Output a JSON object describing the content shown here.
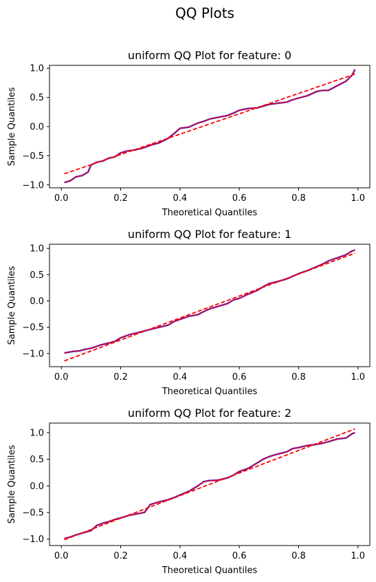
{
  "figure_title": "QQ Plots",
  "colors": {
    "sample_line": "#3b1fd6",
    "reference_line": "#ff0000"
  },
  "chart_data": [
    {
      "type": "line",
      "title": "uniform QQ Plot for feature: 0",
      "xlabel": "Theoretical Quantiles",
      "ylabel": "Sample Quantiles",
      "xlim": [
        -0.04,
        1.04
      ],
      "ylim": [
        -1.05,
        1.05
      ],
      "xticks": [
        0.0,
        0.2,
        0.4,
        0.6,
        0.8,
        1.0
      ],
      "yticks": [
        -1.0,
        -0.5,
        0.0,
        0.5,
        1.0
      ],
      "grid": false,
      "series": [
        {
          "role": "sample",
          "style": "solid",
          "x": [
            0.01,
            0.03,
            0.05,
            0.07,
            0.09,
            0.1,
            0.12,
            0.14,
            0.16,
            0.18,
            0.2,
            0.22,
            0.25,
            0.28,
            0.3,
            0.33,
            0.36,
            0.38,
            0.4,
            0.43,
            0.46,
            0.48,
            0.5,
            0.53,
            0.56,
            0.58,
            0.6,
            0.63,
            0.66,
            0.68,
            0.7,
            0.73,
            0.76,
            0.78,
            0.8,
            0.83,
            0.86,
            0.88,
            0.9,
            0.93,
            0.96,
            0.98,
            0.99
          ],
          "y": [
            -0.96,
            -0.93,
            -0.86,
            -0.84,
            -0.78,
            -0.66,
            -0.61,
            -0.59,
            -0.54,
            -0.52,
            -0.45,
            -0.42,
            -0.4,
            -0.36,
            -0.32,
            -0.28,
            -0.2,
            -0.12,
            -0.03,
            -0.01,
            0.06,
            0.09,
            0.13,
            0.16,
            0.19,
            0.23,
            0.28,
            0.31,
            0.32,
            0.35,
            0.38,
            0.4,
            0.42,
            0.46,
            0.49,
            0.53,
            0.6,
            0.62,
            0.62,
            0.7,
            0.78,
            0.88,
            0.98
          ]
        },
        {
          "role": "reference",
          "style": "dashed",
          "x": [
            0.01,
            0.99
          ],
          "y": [
            -0.81,
            0.9
          ]
        }
      ]
    },
    {
      "type": "line",
      "title": "uniform QQ Plot for feature: 1",
      "xlabel": "Theoretical Quantiles",
      "ylabel": "Sample Quantiles",
      "xlim": [
        -0.04,
        1.04
      ],
      "ylim": [
        -1.25,
        1.08
      ],
      "xticks": [
        0.0,
        0.2,
        0.4,
        0.6,
        0.8,
        1.0
      ],
      "yticks": [
        -1.0,
        -0.5,
        0.0,
        0.5,
        1.0
      ],
      "grid": false,
      "series": [
        {
          "role": "sample",
          "style": "solid",
          "x": [
            0.01,
            0.04,
            0.06,
            0.08,
            0.1,
            0.13,
            0.16,
            0.18,
            0.2,
            0.23,
            0.26,
            0.28,
            0.3,
            0.33,
            0.36,
            0.38,
            0.4,
            0.43,
            0.46,
            0.48,
            0.5,
            0.53,
            0.56,
            0.58,
            0.6,
            0.63,
            0.66,
            0.68,
            0.7,
            0.73,
            0.76,
            0.78,
            0.8,
            0.83,
            0.86,
            0.88,
            0.9,
            0.93,
            0.96,
            0.98,
            0.99
          ],
          "y": [
            -0.99,
            -0.96,
            -0.95,
            -0.92,
            -0.9,
            -0.84,
            -0.8,
            -0.77,
            -0.7,
            -0.64,
            -0.6,
            -0.57,
            -0.54,
            -0.5,
            -0.46,
            -0.39,
            -0.35,
            -0.29,
            -0.26,
            -0.2,
            -0.15,
            -0.1,
            -0.05,
            0.02,
            0.05,
            0.13,
            0.2,
            0.27,
            0.33,
            0.37,
            0.42,
            0.47,
            0.52,
            0.58,
            0.65,
            0.7,
            0.76,
            0.82,
            0.88,
            0.95,
            0.97
          ]
        },
        {
          "role": "reference",
          "style": "dashed",
          "x": [
            0.01,
            0.99
          ],
          "y": [
            -1.14,
            0.91
          ]
        }
      ]
    },
    {
      "type": "line",
      "title": "uniform QQ Plot for feature: 2",
      "xlabel": "Theoretical Quantiles",
      "ylabel": "Sample Quantiles",
      "xlim": [
        -0.04,
        1.04
      ],
      "ylim": [
        -1.12,
        1.18
      ],
      "xticks": [
        0.0,
        0.2,
        0.4,
        0.6,
        0.8,
        1.0
      ],
      "yticks": [
        -1.0,
        -0.5,
        0.0,
        0.5,
        1.0
      ],
      "grid": false,
      "series": [
        {
          "role": "sample",
          "style": "solid",
          "x": [
            0.01,
            0.03,
            0.05,
            0.08,
            0.1,
            0.12,
            0.14,
            0.16,
            0.18,
            0.2,
            0.23,
            0.26,
            0.28,
            0.3,
            0.33,
            0.36,
            0.38,
            0.4,
            0.43,
            0.46,
            0.48,
            0.5,
            0.53,
            0.56,
            0.58,
            0.6,
            0.63,
            0.66,
            0.68,
            0.7,
            0.73,
            0.76,
            0.78,
            0.8,
            0.83,
            0.86,
            0.88,
            0.9,
            0.93,
            0.96,
            0.98,
            0.99
          ],
          "y": [
            -0.99,
            -0.96,
            -0.92,
            -0.87,
            -0.84,
            -0.74,
            -0.7,
            -0.67,
            -0.63,
            -0.6,
            -0.55,
            -0.52,
            -0.5,
            -0.35,
            -0.3,
            -0.26,
            -0.22,
            -0.17,
            -0.1,
            0.0,
            0.08,
            0.1,
            0.11,
            0.15,
            0.2,
            0.27,
            0.33,
            0.43,
            0.5,
            0.55,
            0.6,
            0.64,
            0.7,
            0.72,
            0.76,
            0.78,
            0.8,
            0.83,
            0.88,
            0.9,
            0.98,
            1.0
          ]
        },
        {
          "role": "reference",
          "style": "dashed",
          "x": [
            0.01,
            0.99
          ],
          "y": [
            -1.01,
            1.07
          ]
        }
      ]
    }
  ]
}
